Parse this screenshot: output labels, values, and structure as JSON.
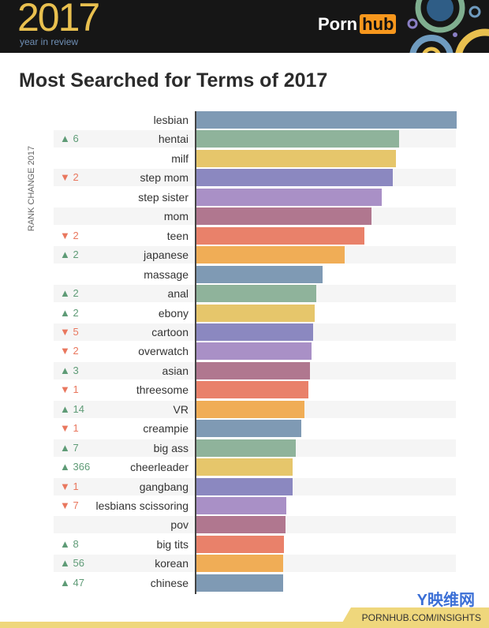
{
  "header": {
    "year": "2017",
    "subtitle": "year in review",
    "brand_left": "Porn",
    "brand_right": "hub"
  },
  "footer": {
    "url": "PORNHUB.COM/INSIGHTS",
    "watermark": "Y映维网"
  },
  "chart_data": {
    "type": "bar",
    "orientation": "horizontal",
    "title": "Most Searched for Terms of 2017",
    "ylabel": "RANK CHANGE 2017",
    "categories": [
      "lesbian",
      "hentai",
      "milf",
      "step mom",
      "step sister",
      "mom",
      "teen",
      "japanese",
      "massage",
      "anal",
      "ebony",
      "cartoon",
      "overwatch",
      "asian",
      "threesome",
      "VR",
      "creampie",
      "big ass",
      "cheerleader",
      "gangbang",
      "lesbians scissoring",
      "pov",
      "big tits",
      "korean",
      "chinese"
    ],
    "values": [
      100,
      77.9,
      76.7,
      75.5,
      71.2,
      67.3,
      64.5,
      57,
      48.5,
      46,
      45.5,
      44.8,
      44.2,
      43.6,
      43,
      41.5,
      40.3,
      38.2,
      37,
      37,
      34.5,
      34.2,
      33.6,
      33.3,
      33.3
    ],
    "rank_change": [
      "",
      "▲ 6",
      "",
      "▼ 2",
      "",
      "",
      "▼ 2",
      "▲ 2",
      "",
      "▲ 2",
      "▲ 2",
      "▼ 5",
      "▼ 2",
      "▲ 3",
      "▼ 1",
      "▲ 14",
      "▼ 1",
      "▲ 7",
      "▲ 366",
      "▼ 1",
      "▼ 7",
      "",
      "▲ 8",
      "▲ 56",
      "▲ 47"
    ],
    "xlim": [
      0,
      100
    ],
    "colors": [
      "#7f9ab4",
      "#8fb39b",
      "#e6c66b",
      "#8b88c0",
      "#a990c6",
      "#b0778f",
      "#e9816a",
      "#f0ad56"
    ],
    "up_color": "#5e9b76",
    "down_color": "#e9775e"
  }
}
